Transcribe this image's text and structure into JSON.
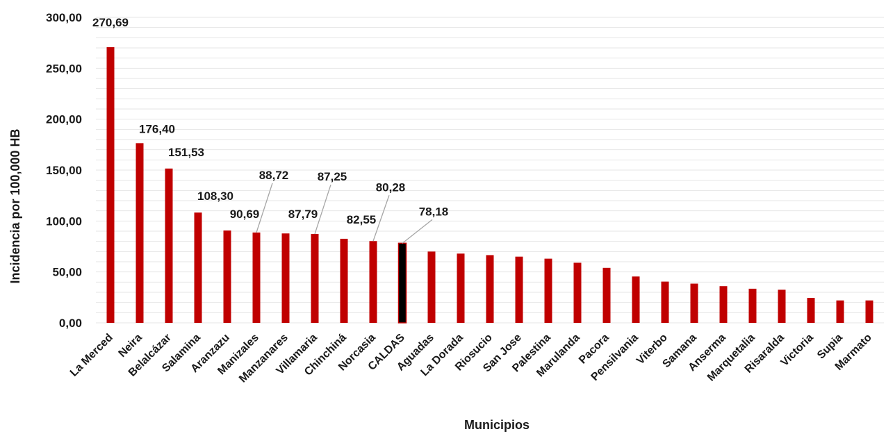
{
  "chart_data": {
    "type": "bar",
    "title": "",
    "xlabel": "Municipios",
    "ylabel": "Incidencia por 100,000 HB",
    "ylim": [
      0,
      300
    ],
    "y_ticks": [
      "0,00",
      "50,00",
      "100,00",
      "150,00",
      "200,00",
      "250,00",
      "300,00"
    ],
    "grid": "horizontal",
    "categories": [
      "La Merced",
      "Neira",
      "Belalcázar",
      "Salamina",
      "Aranzazu",
      "Manizales",
      "Manzanares",
      "Villamaria",
      "Chinchiná",
      "Norcasia",
      "CALDAS",
      "Aguadas",
      "La Dorada",
      "Riosucio",
      "San Jose",
      "Palestina",
      "Marulanda",
      "Pacora",
      "Pensilvania",
      "Viterbo",
      "Samana",
      "Anserma",
      "Marquetalia",
      "Risaralda",
      "Victoria",
      "Supia",
      "Marmato"
    ],
    "series": [
      {
        "values": [
          270.69,
          176.4,
          151.53,
          108.3,
          90.69,
          88.72,
          87.79,
          87.25,
          82.55,
          80.28,
          78.18,
          70,
          68,
          66.5,
          65,
          63,
          59,
          54,
          45.5,
          40.5,
          38.5,
          36,
          33.5,
          32.5,
          24.5,
          22,
          22
        ]
      }
    ],
    "data_labels": [
      "270,69",
      "176,40",
      "151,53",
      "108,30",
      "90,69",
      "88,72",
      "87,79",
      "87,25",
      "82,55",
      "80,28",
      "78,18"
    ],
    "colors": {
      "bar": "#c00000",
      "highlight": "#000000",
      "grid": "#e6e6e6",
      "leader": "#a6a6a6"
    },
    "highlight_category": "CALDAS"
  }
}
